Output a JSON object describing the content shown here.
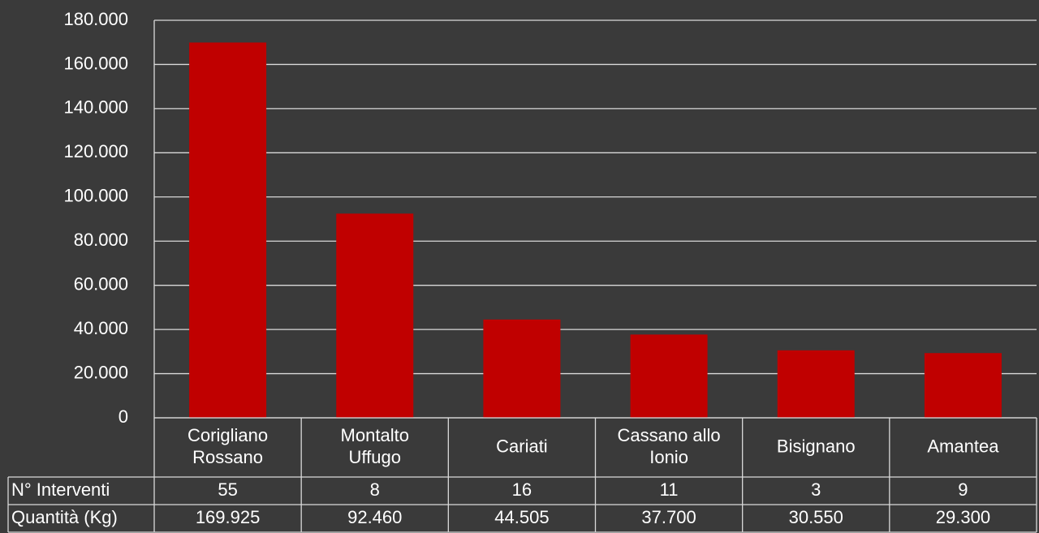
{
  "chart_data": {
    "type": "bar",
    "categories": [
      [
        "Corigliano",
        "Rossano"
      ],
      [
        "Montalto",
        "Uffugo"
      ],
      [
        "Cariati"
      ],
      [
        "Cassano allo",
        "Ionio"
      ],
      [
        "Bisignano"
      ],
      [
        "Amantea"
      ]
    ],
    "values": [
      169925,
      92460,
      44505,
      37700,
      30550,
      29300
    ],
    "ylim": [
      0,
      180000
    ],
    "yticks": [
      0,
      20000,
      40000,
      60000,
      80000,
      100000,
      120000,
      140000,
      160000,
      180000
    ],
    "ytick_labels": [
      "0",
      "20.000",
      "40.000",
      "60.000",
      "80.000",
      "100.000",
      "120.000",
      "140.000",
      "160.000",
      "180.000"
    ],
    "grid": true,
    "table": {
      "rows": [
        {
          "label": "N° Interventi",
          "values": [
            "55",
            "8",
            "16",
            "11",
            "3",
            "9"
          ]
        },
        {
          "label": "Quantità (Kg)",
          "values": [
            "169.925",
            "92.460",
            "44.505",
            "37.700",
            "30.550",
            "29.300"
          ]
        }
      ]
    }
  },
  "colors": {
    "background": "#3a3a3a",
    "bar": "#c00000",
    "grid": "#d9d9d9",
    "text": "#ffffff"
  }
}
